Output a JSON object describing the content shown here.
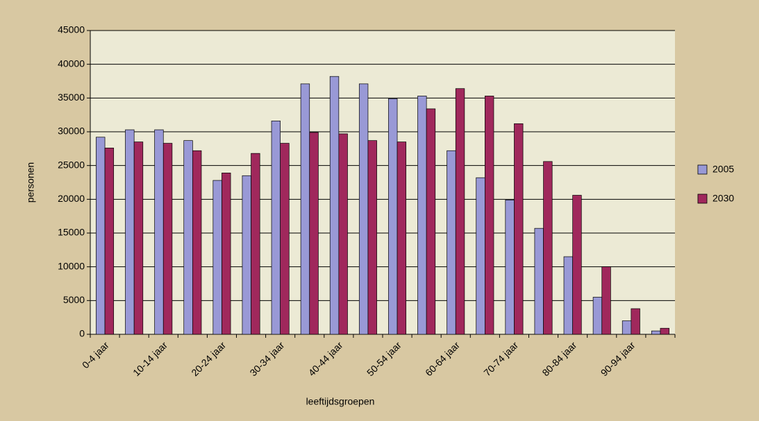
{
  "chart_data": {
    "type": "bar",
    "x_label": "leeftijdsgroepen",
    "y_label": "personen",
    "categories": [
      "0-4  jaar",
      null,
      "10-14  jaar",
      null,
      "20-24  jaar",
      null,
      "30-34  jaar",
      null,
      "40-44  jaar",
      null,
      "50-54  jaar",
      null,
      "60-64  jaar",
      null,
      "70-74  jaar",
      null,
      "80-84  jaar",
      null,
      "90-94  jaar",
      null
    ],
    "series": [
      {
        "name": "2005",
        "color": "#9999d6",
        "values": [
          29200,
          30300,
          30300,
          28700,
          22800,
          23500,
          31600,
          37100,
          38200,
          37100,
          34900,
          35300,
          27200,
          23200,
          19900,
          15700,
          11500,
          5500,
          2000,
          500
        ]
      },
      {
        "name": "2030",
        "color": "#a0285c",
        "values": [
          27600,
          28500,
          28300,
          27200,
          23900,
          26800,
          28300,
          29900,
          29700,
          28700,
          28500,
          33400,
          36400,
          35300,
          31200,
          25600,
          20600,
          10000,
          3800,
          900
        ]
      }
    ],
    "ylim": [
      0,
      45000
    ],
    "yticks": [
      0,
      5000,
      10000,
      15000,
      20000,
      25000,
      30000,
      35000,
      40000,
      45000
    ],
    "grid": true,
    "legend": "right"
  }
}
